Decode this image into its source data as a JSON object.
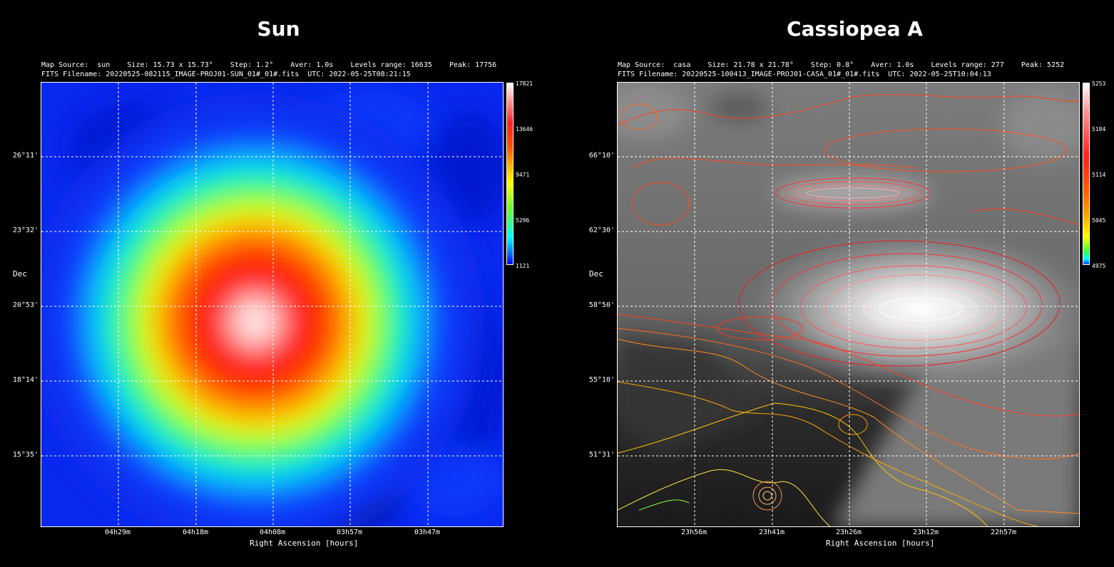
{
  "panels": [
    {
      "title": "Sun",
      "info_line1": "Map Source:  sun    Size: 15.73 x 15.73°    Step: 1.2°    Aver: 1.0s    Levels range: 16635    Peak: 17756",
      "info_line2": "FITS Filename: 20220525-082115_IMAGE-PROJ01-SUN_01#_01#.fits  UTC: 2022-05-25T08:21:15",
      "map_source": "sun",
      "size": "15.73 x 15.73°",
      "step": "1.2°",
      "aver": "1.0s",
      "levels_range": "16635",
      "peak": "17756",
      "fits_filename": "20220525-082115_IMAGE-PROJ01-SUN_01#_01#.fits",
      "utc": "2022-05-25T08:21:15",
      "colormap": "jet",
      "colorbar_ticks": [
        "17821",
        "13646",
        "9471",
        "5296",
        "1121"
      ],
      "y_ticks": [
        "26°11'",
        "23°32'",
        "20°53'",
        "18°14'",
        "15°35'"
      ],
      "x_ticks": [
        "04h29m",
        "04h18m",
        "04h08m",
        "03h57m",
        "03h47m"
      ],
      "y_label": "Dec",
      "x_label": "Right Ascension [hours]"
    },
    {
      "title": "Cassiopea A",
      "info_line1": "Map Source:  casa    Size: 21.78 x 21.78°    Step: 0.8°    Aver: 1.0s    Levels range: 277    Peak: 5252",
      "info_line2": "FITS Filename: 20220525-100413_IMAGE-PROJ01-CASA_01#_01#.fits  UTC: 2022-05-25T10:04:13",
      "map_source": "casa",
      "size": "21.78 x 21.78°",
      "step": "0.8°",
      "aver": "1.0s",
      "levels_range": "277",
      "peak": "5252",
      "fits_filename": "20220525-100413_IMAGE-PROJ01-CASA_01#_01#.fits",
      "utc": "2022-05-25T10:04:13",
      "colormap": "grayscale with contours",
      "colorbar_ticks": [
        "5253",
        "5184",
        "5114",
        "5045",
        "4975"
      ],
      "y_ticks": [
        "66°10'",
        "62°30'",
        "58°50'",
        "55°10'",
        "51°31'"
      ],
      "x_ticks": [
        "23h56m",
        "23h41m",
        "23h26m",
        "23h12m",
        "22h57m"
      ],
      "y_label": "Dec",
      "x_label": "Right Ascension [hours]"
    }
  ]
}
